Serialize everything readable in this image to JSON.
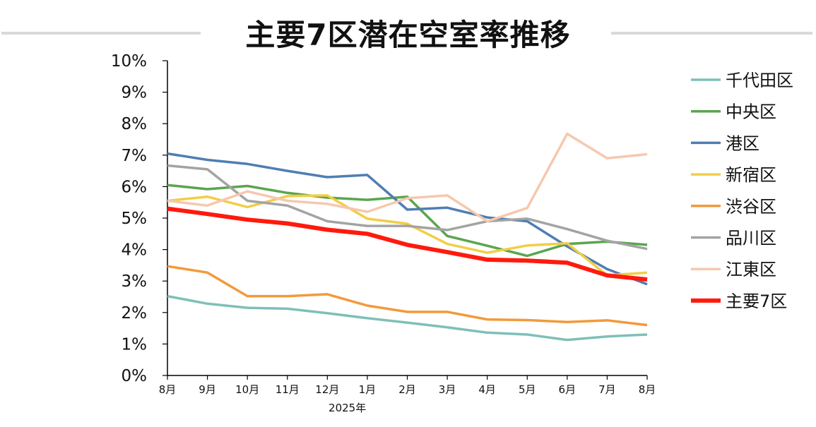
{
  "chart_data": {
    "type": "line",
    "title": "主要7区潜在空室率推移",
    "year_label": "2025年",
    "categories": [
      "8月",
      "9月",
      "10月",
      "11月",
      "12月",
      "1月",
      "2月",
      "3月",
      "4月",
      "5月",
      "6月",
      "7月",
      "8月"
    ],
    "yticks": [
      "10%",
      "9%",
      "8%",
      "7%",
      "6%",
      "5%",
      "4%",
      "3%",
      "2%",
      "1%",
      "0%"
    ],
    "ylim": [
      0,
      10
    ],
    "legend_position": "right",
    "series": [
      {
        "name": "千代田区",
        "color": "#7fbfb8",
        "width": 3.5,
        "values": [
          2.52,
          2.28,
          2.15,
          2.12,
          1.98,
          1.82,
          1.68,
          1.53,
          1.36,
          1.3,
          1.13,
          1.24,
          1.3
        ]
      },
      {
        "name": "中央区",
        "color": "#5aa54f",
        "width": 3.5,
        "values": [
          6.05,
          5.92,
          6.02,
          5.8,
          5.65,
          5.58,
          5.68,
          4.43,
          4.12,
          3.8,
          4.18,
          4.25,
          4.15
        ]
      },
      {
        "name": "港区",
        "color": "#4f7eb3",
        "width": 3.5,
        "values": [
          7.05,
          6.85,
          6.72,
          6.5,
          6.3,
          6.37,
          5.27,
          5.33,
          5.02,
          4.9,
          4.1,
          3.38,
          2.9
        ]
      },
      {
        "name": "新宿区",
        "color": "#f2cd47",
        "width": 3.5,
        "values": [
          5.55,
          5.68,
          5.35,
          5.7,
          5.72,
          4.98,
          4.82,
          4.18,
          3.9,
          4.13,
          4.2,
          3.18,
          3.27
        ]
      },
      {
        "name": "渋谷区",
        "color": "#f29a3a",
        "width": 3.5,
        "values": [
          3.47,
          3.27,
          2.52,
          2.52,
          2.58,
          2.22,
          2.02,
          2.02,
          1.78,
          1.76,
          1.7,
          1.75,
          1.6
        ]
      },
      {
        "name": "品川区",
        "color": "#a3a3a3",
        "width": 3.5,
        "values": [
          6.67,
          6.55,
          5.55,
          5.4,
          4.9,
          4.75,
          4.75,
          4.62,
          4.9,
          4.98,
          4.65,
          4.28,
          4.02
        ]
      },
      {
        "name": "江東区",
        "color": "#f6c8ae",
        "width": 3.5,
        "values": [
          5.55,
          5.4,
          5.85,
          5.55,
          5.45,
          5.2,
          5.63,
          5.72,
          4.9,
          5.32,
          7.68,
          6.9,
          7.03
        ]
      },
      {
        "name": "主要7区",
        "color": "#ff1a0d",
        "width": 6,
        "values": [
          5.3,
          5.13,
          4.95,
          4.83,
          4.63,
          4.5,
          4.15,
          3.92,
          3.68,
          3.65,
          3.58,
          3.18,
          3.05
        ]
      }
    ]
  }
}
